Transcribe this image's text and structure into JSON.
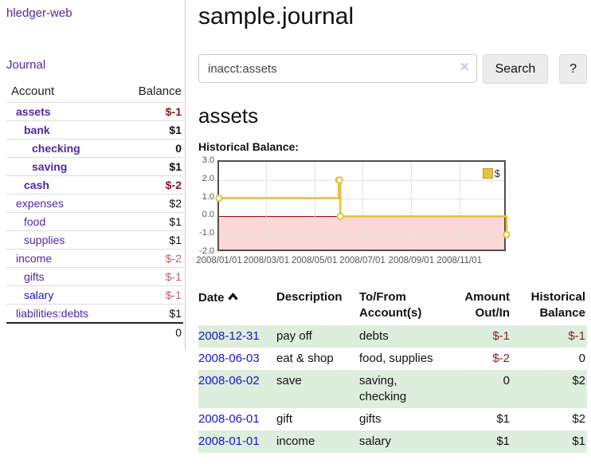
{
  "colors": {
    "accent_purple": "#5227a5",
    "link_blue": "#1414d6",
    "negative": "#7d1717",
    "negative_muted": "#b26565",
    "row_stripe": "#ddeedd",
    "series": "#e8c13d",
    "negative_region": "#fbd7d7",
    "zero_line": "#990000"
  },
  "sidebar": {
    "brand": "hledger-web",
    "journal_link": "Journal",
    "accounts_table": {
      "account_header": "Account",
      "balance_header": "Balance",
      "rows": [
        {
          "name": "assets",
          "level": 1,
          "balance": "$-1",
          "strong": true
        },
        {
          "name": "bank",
          "level": 2,
          "balance": "$1",
          "strong": true
        },
        {
          "name": "checking",
          "level": 3,
          "balance": "0",
          "strong": true
        },
        {
          "name": "saving",
          "level": 3,
          "balance": "$1",
          "strong": true
        },
        {
          "name": "cash",
          "level": 2,
          "balance": "$-2",
          "strong": true
        },
        {
          "name": "expenses",
          "level": 1,
          "balance": "$2"
        },
        {
          "name": "food",
          "level": 2,
          "balance": "$1"
        },
        {
          "name": "supplies",
          "level": 2,
          "balance": "$1"
        },
        {
          "name": "income",
          "level": 1,
          "balance": "$-2"
        },
        {
          "name": "gifts",
          "level": 2,
          "balance": "$-1"
        },
        {
          "name": "salary",
          "level": 2,
          "balance": "$-1",
          "unvisited": true
        },
        {
          "name": "liabilities:debts",
          "level": 1,
          "balance": "$1"
        }
      ],
      "total": "0"
    }
  },
  "header": {
    "title": "sample.journal"
  },
  "search": {
    "value": "inacct:assets",
    "clear_icon": "✕",
    "search_button": "Search",
    "help_button": "?"
  },
  "account_page": {
    "title": "assets",
    "chart_label": "Historical Balance:"
  },
  "chart_data": {
    "type": "line",
    "style": "step",
    "title": "Historical Balance:",
    "legend": [
      {
        "label": "$",
        "color": "#e8c13d"
      }
    ],
    "legend_position": "top-right",
    "grid": true,
    "x_range": [
      "2008-01-01",
      "2009-01-01"
    ],
    "ylim": [
      -2.0,
      3.0
    ],
    "y_ticks": [
      3.0,
      2.0,
      1.0,
      0.0,
      -1.0,
      -2.0
    ],
    "x_ticks": [
      "2008-01-01",
      "2008-03-01",
      "2008-05-01",
      "2008-07-01",
      "2008-09-01",
      "2008-11-01"
    ],
    "x_tick_labels": [
      "2008/01/01",
      "2008/03/01",
      "2008/05/01",
      "2008/07/01",
      "2008/09/01",
      "2008/11/01"
    ],
    "series": [
      {
        "name": "$",
        "color": "#e8c13d",
        "points": [
          {
            "x": "2008-01-01",
            "y": 1
          },
          {
            "x": "2008-06-01",
            "y": 2
          },
          {
            "x": "2008-06-02",
            "y": 2
          },
          {
            "x": "2008-06-03",
            "y": 0
          },
          {
            "x": "2008-12-31",
            "y": -1
          }
        ]
      }
    ],
    "negative_region_below": 0
  },
  "transactions_table": {
    "headers": {
      "date": "Date",
      "description": "Description",
      "accounts": "To/From\nAccount(s)",
      "amount": "Amount\nOut/In",
      "balance": "Historical\nBalance"
    },
    "sort": "date-ascending",
    "rows": [
      {
        "date": "2008-12-31",
        "description": "pay off",
        "accounts": "debts",
        "amount": "$-1",
        "balance": "$-1"
      },
      {
        "date": "2008-06-03",
        "description": "eat & shop",
        "accounts": "food, supplies",
        "amount": "$-2",
        "balance": "0"
      },
      {
        "date": "2008-06-02",
        "description": "save",
        "accounts": "saving, checking",
        "amount": "0",
        "balance": "$2"
      },
      {
        "date": "2008-06-01",
        "description": "gift",
        "accounts": "gifts",
        "amount": "$1",
        "balance": "$2"
      },
      {
        "date": "2008-01-01",
        "description": "income",
        "accounts": "salary",
        "amount": "$1",
        "balance": "$1"
      }
    ]
  }
}
